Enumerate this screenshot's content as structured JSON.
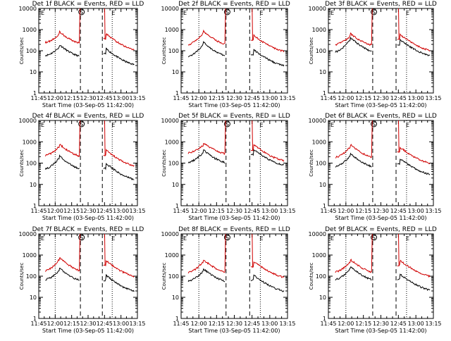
{
  "figure": {
    "type": "line-grid",
    "ylabel": "Counts/sec",
    "xlabel": "Start Time (03-Sep-05 11:42:00)",
    "x_ticks": [
      "11:45",
      "12:00",
      "12:15",
      "12:30",
      "12:45",
      "13:00",
      "13:15"
    ],
    "y_ticks": [
      "1",
      "10",
      "100",
      "1000",
      "10000"
    ],
    "markers": {
      "s": "S",
      "e1": "E",
      "e2": "E"
    },
    "colors": {
      "events": "#000000",
      "lld": "#d00000",
      "axis": "#000000"
    }
  },
  "chart_data": [
    {
      "title": "Det 1f BLACK = Events, RED = LLD",
      "events": [
        [
          0.5,
          12.3,
          60
        ],
        [
          0.8,
          12.1,
          150
        ],
        [
          1.4,
          12.4,
          45
        ]
      ],
      "lld": [
        [
          0.5,
          12.3,
          250
        ],
        [
          0.8,
          12.1,
          620
        ],
        [
          1.4,
          12.4,
          230
        ]
      ],
      "lld_sat": [
        [
          12.7,
          13.1
        ]
      ],
      "ev_gap": [
        12.4,
        12.8
      ]
    },
    {
      "title": "Det 2f BLACK = Events, RED = LLD",
      "events": [
        [
          0.5,
          12.4,
          55
        ],
        [
          0.8,
          12.05,
          210
        ],
        [
          1.4,
          12.4,
          40
        ]
      ],
      "lld": [
        [
          0.5,
          12.4,
          200
        ],
        [
          0.8,
          12.05,
          700
        ],
        [
          1.4,
          12.4,
          190
        ]
      ],
      "lld_sat": [
        [
          12.6,
          13.0
        ]
      ],
      "ev_gap": [
        12.4,
        12.8
      ]
    },
    {
      "title": "Det 3f BLACK = Events, RED = LLD",
      "events": [
        [
          0.5,
          12.2,
          90
        ],
        [
          0.8,
          12.0,
          350
        ],
        [
          1.4,
          12.45,
          120
        ]
      ],
      "lld": [
        [
          0.5,
          12.2,
          200
        ],
        [
          0.8,
          12.0,
          500
        ],
        [
          1.4,
          12.45,
          210
        ]
      ],
      "lld_sat": [
        [
          12.35,
          12.95
        ]
      ],
      "ev_gap": [
        12.4,
        12.8
      ]
    },
    {
      "title": "Det 4f BLACK = Events, RED = LLD",
      "events": [
        [
          0.5,
          12.3,
          55
        ],
        [
          0.8,
          12.1,
          180
        ],
        [
          1.4,
          12.4,
          35
        ]
      ],
      "lld": [
        [
          0.5,
          12.3,
          230
        ],
        [
          0.8,
          12.1,
          620
        ],
        [
          1.4,
          12.4,
          150
        ]
      ],
      "lld_sat": [
        [
          12.4,
          12.75
        ]
      ],
      "ev_gap": [
        12.4,
        12.8
      ]
    },
    {
      "title": "Det 5f BLACK = Events, RED = LLD",
      "events": [
        [
          0.5,
          12.25,
          110
        ],
        [
          0.8,
          12.0,
          330
        ],
        [
          1.4,
          12.45,
          160
        ]
      ],
      "lld": [
        [
          0.5,
          12.25,
          300
        ],
        [
          0.8,
          12.0,
          700
        ],
        [
          1.4,
          12.45,
          260
        ]
      ],
      "lld_sat": [
        [
          12.5,
          12.9
        ]
      ],
      "ev_gap": [
        12.4,
        12.8
      ]
    },
    {
      "title": "Det 6f BLACK = Events, RED = LLD",
      "events": [
        [
          0.5,
          12.2,
          70
        ],
        [
          0.8,
          12.0,
          230
        ],
        [
          1.4,
          12.4,
          60
        ]
      ],
      "lld": [
        [
          0.5,
          12.2,
          190
        ],
        [
          0.8,
          12.0,
          600
        ],
        [
          1.4,
          12.4,
          200
        ]
      ],
      "lld_sat": [
        [
          12.4,
          12.85
        ]
      ],
      "ev_gap": [
        12.4,
        12.8
      ]
    },
    {
      "title": "Det 7f BLACK = Events, RED = LLD",
      "events": [
        [
          0.5,
          12.35,
          70
        ],
        [
          0.8,
          12.1,
          190
        ],
        [
          1.4,
          12.4,
          40
        ]
      ],
      "lld": [
        [
          0.5,
          12.35,
          180
        ],
        [
          0.8,
          12.1,
          650
        ],
        [
          1.4,
          12.4,
          200
        ]
      ],
      "lld_sat": [
        [
          12.5,
          12.9
        ]
      ],
      "ev_gap": [
        12.4,
        12.8
      ]
    },
    {
      "title": "Det 8f BLACK = Events, RED = LLD",
      "events": [
        [
          0.5,
          12.35,
          60
        ],
        [
          0.8,
          12.1,
          180
        ],
        [
          1.4,
          12.4,
          40
        ]
      ],
      "lld": [
        [
          0.5,
          12.35,
          150
        ],
        [
          0.8,
          12.1,
          500
        ],
        [
          1.4,
          12.4,
          180
        ]
      ],
      "lld_sat": [
        [
          12.5,
          12.8
        ]
      ],
      "ev_gap": [
        12.4,
        12.8
      ]
    },
    {
      "title": "Det 9f BLACK = Events, RED = LLD",
      "events": [
        [
          0.5,
          12.3,
          70
        ],
        [
          0.8,
          12.05,
          230
        ],
        [
          1.4,
          12.4,
          45
        ]
      ],
      "lld": [
        [
          0.5,
          12.3,
          160
        ],
        [
          0.8,
          12.05,
          500
        ],
        [
          1.4,
          12.4,
          200
        ]
      ],
      "lld_sat": [
        [
          12.4,
          12.85
        ]
      ],
      "ev_gap": [
        12.4,
        12.8
      ]
    }
  ]
}
